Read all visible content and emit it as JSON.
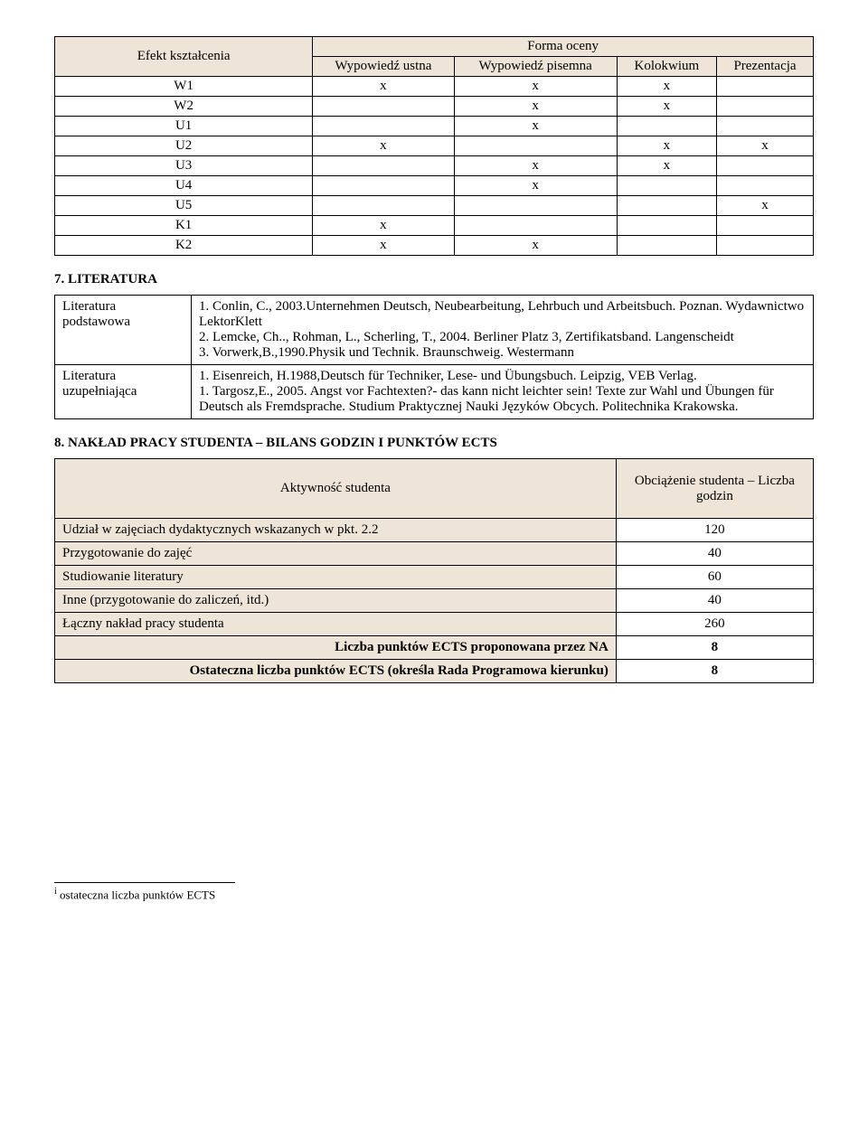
{
  "grades_table": {
    "col1_header": "Efekt kształcenia",
    "forma_header": "Forma oceny",
    "sub_headers": [
      "Wypowiedź ustna",
      "Wypowiedź pisemna",
      "Kolokwium",
      "Prezentacja"
    ],
    "rows": [
      {
        "label": "W1",
        "cells": [
          "x",
          "x",
          "x",
          ""
        ]
      },
      {
        "label": "W2",
        "cells": [
          "",
          "x",
          "x",
          ""
        ]
      },
      {
        "label": "U1",
        "cells": [
          "",
          "x",
          "",
          ""
        ]
      },
      {
        "label": "U2",
        "cells": [
          "x",
          "",
          "x",
          "x"
        ]
      },
      {
        "label": "U3",
        "cells": [
          "",
          "x",
          "x",
          ""
        ]
      },
      {
        "label": "U4",
        "cells": [
          "",
          "x",
          "",
          ""
        ]
      },
      {
        "label": "U5",
        "cells": [
          "",
          "",
          "",
          "x"
        ]
      },
      {
        "label": "K1",
        "cells": [
          "x",
          "",
          "",
          ""
        ]
      },
      {
        "label": "K2",
        "cells": [
          "x",
          "x",
          "",
          ""
        ]
      }
    ]
  },
  "section7_title": "7. LITERATURA",
  "literature": {
    "row1_label": "Literatura podstawowa",
    "row1_text": "1. Conlin, C., 2003.Unternehmen Deutsch, Neubearbeitung, Lehrbuch und Arbeitsbuch. Poznan. Wydawnictwo LektorKlett\n2. Lemcke, Ch.., Rohman, L., Scherling, T., 2004. Berliner Platz 3, Zertifikatsband. Langenscheidt\n3. Vorwerk,B.,1990.Physik und Technik. Braunschweig. Westermann",
    "row2_label": "Literatura uzupełniająca",
    "row2_text": "1. Eisenreich, H.1988,Deutsch für Techniker, Lese- und Übungsbuch. Leipzig, VEB Verlag.\n1. Targosz,E., 2005. Angst vor Fachtexten?- das kann nicht leichter sein! Texte zur Wahl und Übungen für Deutsch als Fremdsprache. Studium Praktycznej Nauki Języków Obcych. Politechnika Krakowska."
  },
  "section8_title": "8. NAKŁAD PRACY STUDENTA – BILANS GODZIN I PUNKTÓW ECTS",
  "workload": {
    "col1_header": "Aktywność studenta",
    "col2_header": "Obciążenie studenta – Liczba godzin",
    "rows": [
      {
        "label": "Udział w zajęciach dydaktycznych wskazanych w pkt. 2.2",
        "value": "120"
      },
      {
        "label": "Przygotowanie do zajęć",
        "value": "40"
      },
      {
        "label": "Studiowanie literatury",
        "value": "60"
      },
      {
        "label": "Inne (przygotowanie do zaliczeń, itd.)",
        "value": "40"
      },
      {
        "label": "Łączny nakład pracy studenta",
        "value": "260"
      },
      {
        "label": "Liczba punktów ECTS proponowana przez NA",
        "value": "8",
        "bold": true,
        "right": true
      },
      {
        "label": "Ostateczna liczba punktów ECTS (określa Rada Programowa kierunku)",
        "value": "8",
        "bold": true,
        "right": true
      }
    ]
  },
  "footnote": "ostateczna liczba punktów ECTS",
  "footnote_marker": "i"
}
